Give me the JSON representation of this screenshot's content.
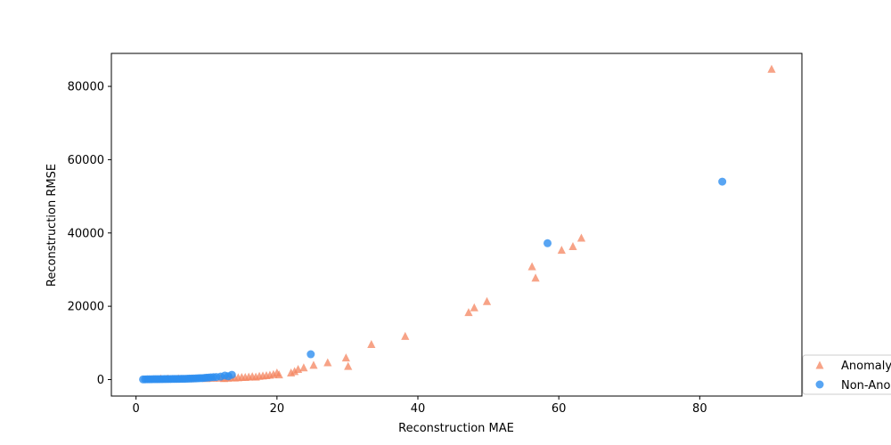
{
  "chart_data": {
    "type": "scatter",
    "xlabel": "Reconstruction MAE",
    "ylabel": "Reconstruction RMSE",
    "xlim": [
      -3.5,
      94.5
    ],
    "ylim": [
      -4500,
      89000
    ],
    "x_ticks": [
      0,
      20,
      40,
      60,
      80
    ],
    "y_ticks": [
      0,
      20000,
      40000,
      60000,
      80000
    ],
    "x_tick_labels": [
      "0",
      "20",
      "40",
      "60",
      "80"
    ],
    "y_tick_labels": [
      "0",
      "20000",
      "40000",
      "60000",
      "80000"
    ],
    "grid": false,
    "legend_position": "bottom-right",
    "series": [
      {
        "name": "Anomaly",
        "marker": "triangle",
        "color": "#f4845f",
        "points": [
          [
            3.5,
            200
          ],
          [
            4.5,
            200
          ],
          [
            6.0,
            250
          ],
          [
            8.0,
            250
          ],
          [
            10.0,
            300
          ],
          [
            11.0,
            350
          ],
          [
            12.0,
            400
          ],
          [
            12.5,
            300
          ],
          [
            13.0,
            400
          ],
          [
            13.5,
            500
          ],
          [
            14.0,
            450
          ],
          [
            14.5,
            500
          ],
          [
            15.0,
            600
          ],
          [
            15.5,
            600
          ],
          [
            16.0,
            700
          ],
          [
            16.5,
            800
          ],
          [
            17.0,
            700
          ],
          [
            17.5,
            900
          ],
          [
            18.0,
            1000
          ],
          [
            18.5,
            1100
          ],
          [
            19.0,
            1200
          ],
          [
            19.5,
            1400
          ],
          [
            20.0,
            1800
          ],
          [
            20.3,
            1300
          ],
          [
            22.0,
            1800
          ],
          [
            22.5,
            2200
          ],
          [
            23.0,
            2800
          ],
          [
            23.8,
            3200
          ],
          [
            25.2,
            3900
          ],
          [
            27.2,
            4600
          ],
          [
            29.8,
            5900
          ],
          [
            30.1,
            3600
          ],
          [
            33.4,
            9600
          ],
          [
            38.2,
            11800
          ],
          [
            47.2,
            18300
          ],
          [
            48.0,
            19600
          ],
          [
            49.8,
            21300
          ],
          [
            56.2,
            30800
          ],
          [
            56.7,
            27700
          ],
          [
            60.4,
            35300
          ],
          [
            62.0,
            36300
          ],
          [
            63.2,
            38600
          ],
          [
            90.2,
            84700
          ]
        ]
      },
      {
        "name": "Non-Anomaly",
        "marker": "circle",
        "color": "#2e8ff0",
        "points": [
          [
            1.0,
            50
          ],
          [
            1.3,
            60
          ],
          [
            1.6,
            70
          ],
          [
            1.9,
            80
          ],
          [
            2.2,
            90
          ],
          [
            2.5,
            100
          ],
          [
            2.8,
            100
          ],
          [
            3.1,
            110
          ],
          [
            3.4,
            120
          ],
          [
            3.7,
            120
          ],
          [
            4.0,
            130
          ],
          [
            4.3,
            140
          ],
          [
            4.6,
            150
          ],
          [
            4.9,
            150
          ],
          [
            5.2,
            160
          ],
          [
            5.5,
            170
          ],
          [
            5.8,
            180
          ],
          [
            6.1,
            190
          ],
          [
            6.4,
            200
          ],
          [
            6.7,
            200
          ],
          [
            7.0,
            220
          ],
          [
            7.3,
            240
          ],
          [
            7.6,
            260
          ],
          [
            7.9,
            280
          ],
          [
            8.2,
            300
          ],
          [
            8.5,
            320
          ],
          [
            8.8,
            350
          ],
          [
            9.1,
            380
          ],
          [
            9.4,
            400
          ],
          [
            9.7,
            450
          ],
          [
            10.0,
            500
          ],
          [
            10.3,
            550
          ],
          [
            10.6,
            600
          ],
          [
            11.0,
            650
          ],
          [
            11.4,
            700
          ],
          [
            12.0,
            800
          ],
          [
            12.6,
            1100
          ],
          [
            13.1,
            900
          ],
          [
            13.6,
            1300
          ],
          [
            24.8,
            6900
          ],
          [
            58.4,
            37200
          ],
          [
            83.2,
            54000
          ]
        ]
      }
    ]
  }
}
